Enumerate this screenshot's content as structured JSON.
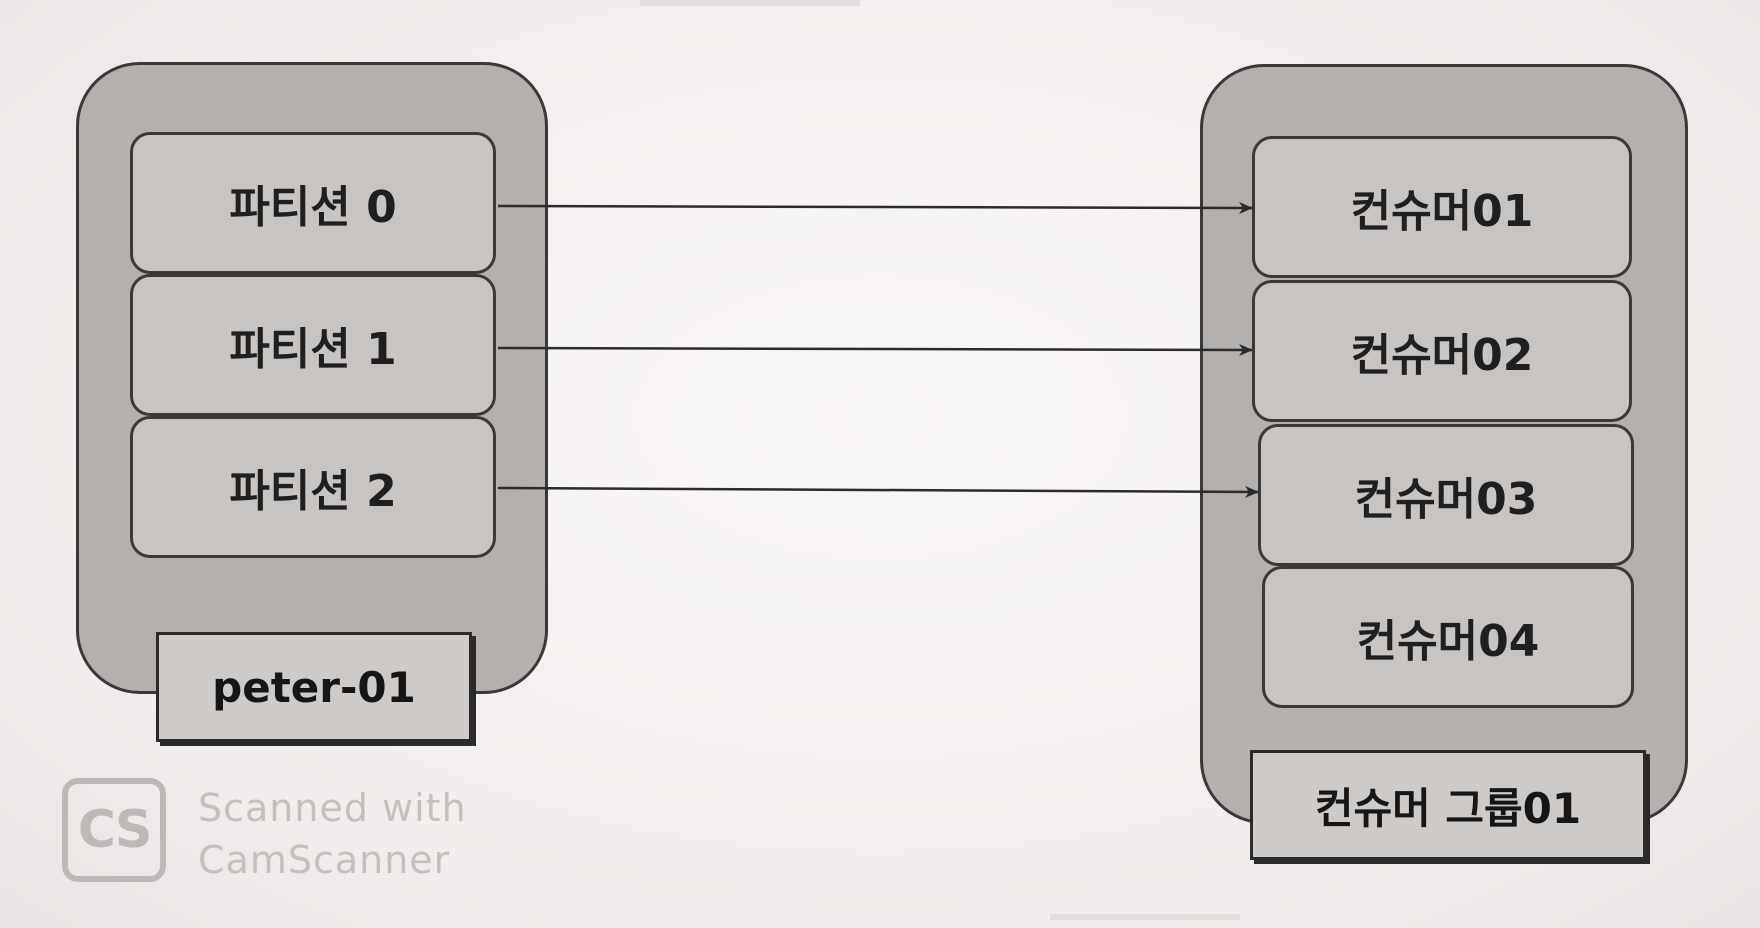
{
  "topic": {
    "partitions": [
      "파티션 0",
      "파티션 1",
      "파티션 2"
    ],
    "label": "peter-01"
  },
  "consumer_group": {
    "consumers": [
      "컨슈머01",
      "컨슈머02",
      "컨슈머03",
      "컨슈머04"
    ],
    "label": "컨슈머 그룹01"
  },
  "watermark": {
    "logo": "CS",
    "line1": "Scanned with",
    "line2": "CamScanner"
  },
  "colors": {
    "container": "#b3b0ae",
    "box": "#c7c4c2",
    "stroke": "#3a3938",
    "arrow": "#2b2b2b"
  }
}
